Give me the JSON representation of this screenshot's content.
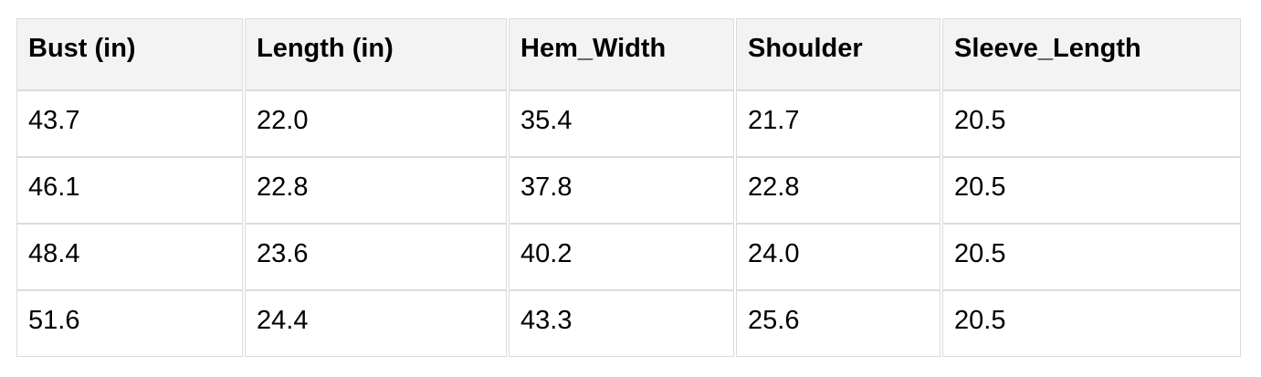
{
  "page": {
    "background_color": "#ffffff",
    "text_color": "#000000"
  },
  "table": {
    "name": "size-chart",
    "header_bg_color": "#f3f3f3",
    "border_color": "#dcdcdc",
    "columns": [
      "Bust (in)",
      "Length (in)",
      "Hem_Width",
      "Shoulder",
      "Sleeve_Length"
    ],
    "rows": [
      [
        "43.7",
        "22.0",
        "35.4",
        "21.7",
        "20.5"
      ],
      [
        "46.1",
        "22.8",
        "37.8",
        "22.8",
        "20.5"
      ],
      [
        "48.4",
        "23.6",
        "40.2",
        "24.0",
        "20.5"
      ],
      [
        "51.6",
        "24.4",
        "43.3",
        "25.6",
        "20.5"
      ]
    ]
  },
  "chart_data": {
    "type": "table",
    "columns": [
      "Bust (in)",
      "Length (in)",
      "Hem_Width",
      "Shoulder",
      "Sleeve_Length"
    ],
    "rows": [
      [
        43.7,
        22.0,
        35.4,
        21.7,
        20.5
      ],
      [
        46.1,
        22.8,
        37.8,
        22.8,
        20.5
      ],
      [
        48.4,
        23.6,
        40.2,
        24.0,
        20.5
      ],
      [
        51.6,
        24.4,
        43.3,
        25.6,
        20.5
      ]
    ]
  }
}
